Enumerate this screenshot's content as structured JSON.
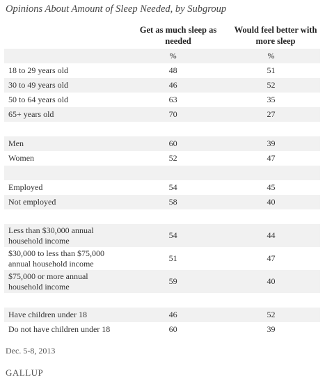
{
  "title": "Opinions About Amount of Sleep Needed, by Subgroup",
  "columns": [
    "Get as much sleep as needed",
    "Would feel better with more sleep"
  ],
  "units": [
    "%",
    "%"
  ],
  "groups": [
    [
      {
        "label": "18 to 29 years old",
        "values": [
          48,
          51
        ]
      },
      {
        "label": "30 to 49 years old",
        "values": [
          46,
          52
        ]
      },
      {
        "label": "50 to 64 years old",
        "values": [
          63,
          35
        ]
      },
      {
        "label": "65+ years old",
        "values": [
          70,
          27
        ]
      }
    ],
    [
      {
        "label": "Men",
        "values": [
          60,
          39
        ]
      },
      {
        "label": "Women",
        "values": [
          52,
          47
        ]
      }
    ],
    [
      {
        "label": "Employed",
        "values": [
          54,
          45
        ]
      },
      {
        "label": "Not employed",
        "values": [
          58,
          40
        ]
      }
    ],
    [
      {
        "label": "Less than $30,000 annual household income",
        "values": [
          54,
          44
        ]
      },
      {
        "label": "$30,000 to less than $75,000 annual household income",
        "values": [
          51,
          47
        ]
      },
      {
        "label": "$75,000 or more annual household income",
        "values": [
          59,
          40
        ]
      }
    ],
    [
      {
        "label": "Have children under 18",
        "values": [
          46,
          52
        ]
      },
      {
        "label": "Do not have children under 18",
        "values": [
          60,
          39
        ]
      }
    ]
  ],
  "footnote": "Dec. 5-8, 2013",
  "source": "GALLUP"
}
